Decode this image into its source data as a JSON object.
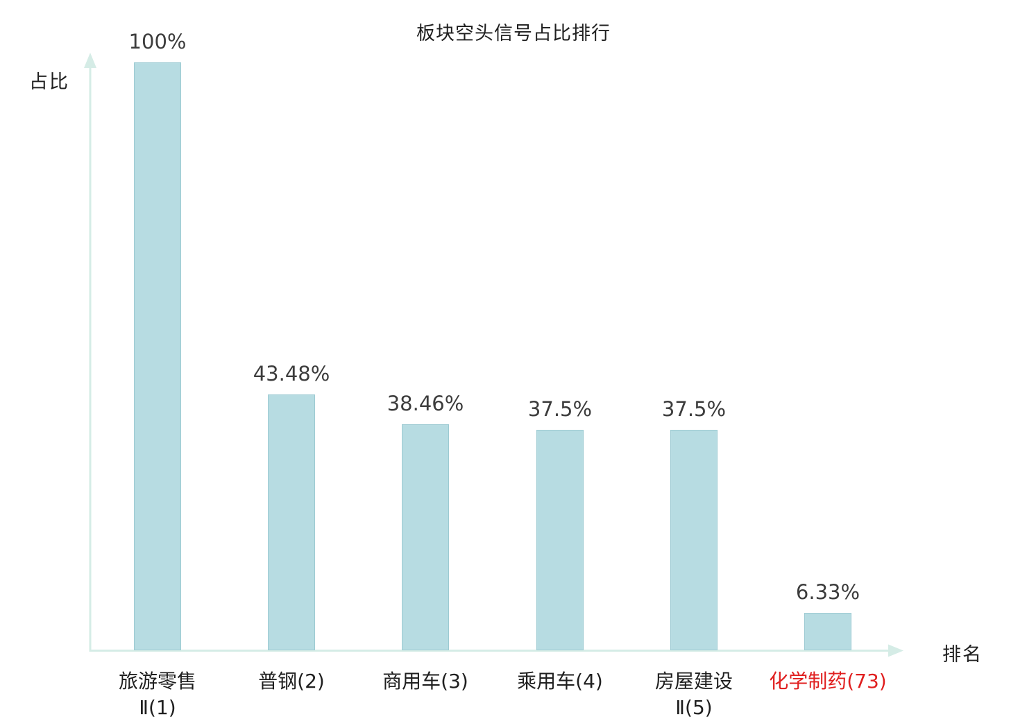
{
  "title": "板块空头信号占比排行",
  "axes": {
    "y_label": "占比",
    "x_label": "排名"
  },
  "colors": {
    "bar_fill": "#b7dce2",
    "bar_border": "#9ccad2",
    "axis": "#d5ece6",
    "value_label": "#3c3c3c",
    "category_label": "#1f1f1f",
    "highlight": "#e02020"
  },
  "chart_data": {
    "type": "bar",
    "title": "板块空头信号占比排行",
    "xlabel": "排名",
    "ylabel": "占比",
    "ylim": [
      0,
      100
    ],
    "grid": false,
    "legend": "none",
    "categories": [
      "旅游零售Ⅱ(1)",
      "普钢(2)",
      "商用车(3)",
      "乘用车(4)",
      "房屋建设Ⅱ(5)",
      "化学制药(73)"
    ],
    "category_lines": [
      [
        "旅游零售",
        "Ⅱ(1)"
      ],
      [
        "普钢(2)"
      ],
      [
        "商用车(3)"
      ],
      [
        "乘用车(4)"
      ],
      [
        "房屋建设",
        "Ⅱ(5)"
      ],
      [
        "化学制药(73)"
      ]
    ],
    "values": [
      100,
      43.48,
      38.46,
      37.5,
      37.5,
      6.33
    ],
    "value_labels": [
      "100%",
      "43.48%",
      "38.46%",
      "37.5%",
      "37.5%",
      "6.33%"
    ],
    "highlighted_index": 5
  }
}
